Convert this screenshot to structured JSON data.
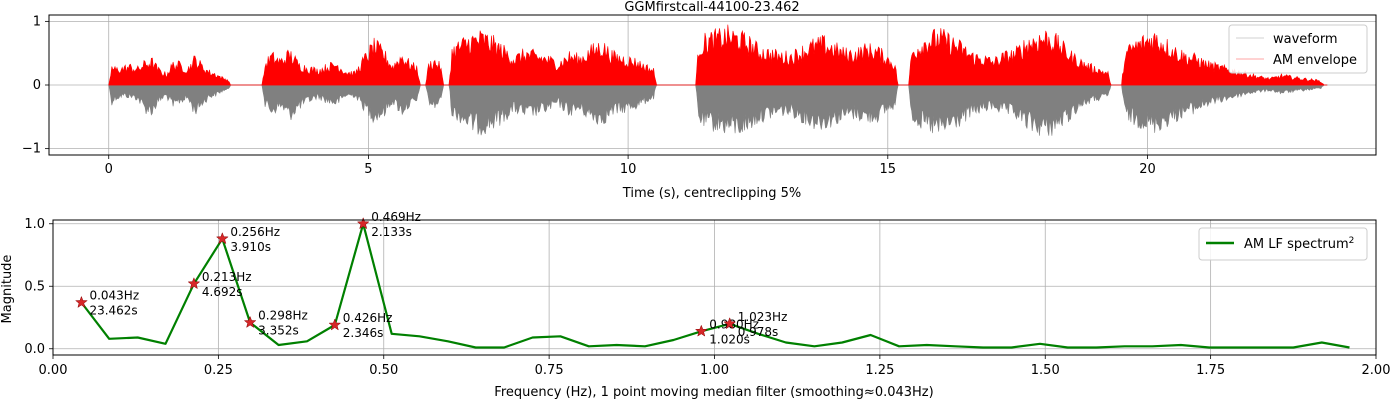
{
  "chart_data": [
    {
      "type": "line",
      "title": "GGMfirstcall-44100-23.462",
      "xlabel": "Time (s), centreclipping 5%",
      "ylabel": "",
      "xlim": [
        -1.15,
        24.4
      ],
      "ylim": [
        -1.1,
        1.1
      ],
      "xticks": [
        0,
        5,
        10,
        15,
        20
      ],
      "yticks": [
        -1,
        0,
        1
      ],
      "xtick_labels": [
        "0",
        "5",
        "10",
        "15",
        "20"
      ],
      "ytick_labels": [
        "−1",
        "0",
        "1"
      ],
      "grid": true,
      "legend": "top-right",
      "duration": 23.462,
      "series": [
        {
          "name": "waveform",
          "color": "#808080",
          "segments": [
            {
              "start": 0.0,
              "end": 2.35,
              "amplitude": [
                0.37,
                0.25,
                0.2,
                0.22,
                0.25,
                0.45,
                0.5,
                0.3,
                0.2,
                0.4,
                0.3,
                0.25,
                0.5,
                0.35,
                0.22,
                0.18,
                0.1,
                0.1
              ]
            },
            {
              "start": 2.95,
              "end": 6.0,
              "amplitude": [
                0.3,
                0.5,
                0.4,
                0.58,
                0.4,
                0.3,
                0.22,
                0.3,
                0.35,
                0.2,
                0.2,
                0.42,
                0.6,
                0.55,
                0.3,
                0.5,
                0.35,
                0.3
              ]
            },
            {
              "start": 6.1,
              "end": 6.45,
              "amplitude": [
                0.3,
                0.4,
                0.25
              ]
            },
            {
              "start": 6.55,
              "end": 10.55,
              "amplitude": [
                0.5,
                0.6,
                0.75,
                0.8,
                0.72,
                0.6,
                0.45,
                0.55,
                0.5,
                0.45,
                0.35,
                0.5,
                0.45,
                0.6,
                0.65,
                0.5,
                0.45,
                0.4,
                0.3,
                0.2
              ]
            },
            {
              "start": 11.3,
              "end": 15.2,
              "amplitude": [
                0.6,
                0.72,
                0.75,
                0.8,
                0.82,
                0.75,
                0.6,
                0.55,
                0.5,
                0.5,
                0.6,
                0.7,
                0.72,
                0.65,
                0.58,
                0.55,
                0.62,
                0.6,
                0.45,
                0.35
              ]
            },
            {
              "start": 15.4,
              "end": 19.3,
              "amplitude": [
                0.5,
                0.7,
                0.8,
                0.85,
                0.75,
                0.65,
                0.5,
                0.45,
                0.4,
                0.5,
                0.55,
                0.7,
                0.8,
                0.85,
                0.75,
                0.6,
                0.4,
                0.3,
                0.25,
                0.2
              ]
            },
            {
              "start": 19.5,
              "end": 23.4,
              "amplitude": [
                0.45,
                0.65,
                0.7,
                0.78,
                0.7,
                0.6,
                0.5,
                0.45,
                0.35,
                0.3,
                0.25,
                0.2,
                0.15,
                0.12,
                0.1,
                0.15,
                0.12,
                0.1,
                0.08,
                0.05
              ]
            }
          ]
        },
        {
          "name": "AM envelope",
          "color": "#ff0000",
          "segments": [
            {
              "start": 0.0,
              "end": 2.35,
              "amplitude": [
                0.35,
                0.3,
                0.32,
                0.35,
                0.3,
                0.4,
                0.45,
                0.28,
                0.2,
                0.4,
                0.38,
                0.3,
                0.5,
                0.36,
                0.25,
                0.2,
                0.12,
                0.1
              ]
            },
            {
              "start": 2.95,
              "end": 6.0,
              "amplitude": [
                0.3,
                0.55,
                0.45,
                0.6,
                0.38,
                0.32,
                0.28,
                0.35,
                0.4,
                0.25,
                0.22,
                0.5,
                0.75,
                0.62,
                0.35,
                0.55,
                0.38,
                0.3
              ]
            },
            {
              "start": 6.1,
              "end": 6.45,
              "amplitude": [
                0.35,
                0.45,
                0.3
              ]
            },
            {
              "start": 6.55,
              "end": 10.55,
              "amplitude": [
                0.6,
                0.75,
                0.85,
                0.9,
                0.8,
                0.65,
                0.5,
                0.6,
                0.55,
                0.5,
                0.4,
                0.55,
                0.5,
                0.65,
                0.75,
                0.55,
                0.5,
                0.45,
                0.35,
                0.25
              ]
            },
            {
              "start": 11.3,
              "end": 15.2,
              "amplitude": [
                0.7,
                0.85,
                0.9,
                0.95,
                0.9,
                0.8,
                0.65,
                0.6,
                0.55,
                0.55,
                0.65,
                0.75,
                0.8,
                0.7,
                0.6,
                0.6,
                0.68,
                0.65,
                0.5,
                0.35
              ]
            },
            {
              "start": 15.4,
              "end": 19.3,
              "amplitude": [
                0.55,
                0.75,
                0.88,
                0.92,
                0.82,
                0.7,
                0.55,
                0.5,
                0.45,
                0.55,
                0.6,
                0.78,
                0.88,
                0.92,
                0.8,
                0.6,
                0.45,
                0.35,
                0.28,
                0.2
              ]
            },
            {
              "start": 19.5,
              "end": 23.4,
              "amplitude": [
                0.5,
                0.72,
                0.82,
                0.92,
                0.8,
                0.65,
                0.55,
                0.5,
                0.4,
                0.35,
                0.3,
                0.25,
                0.2,
                0.15,
                0.12,
                0.18,
                0.15,
                0.12,
                0.1,
                0.06
              ]
            }
          ]
        }
      ]
    },
    {
      "type": "line",
      "title": "",
      "xlabel": "Frequency (Hz), 1 point moving median filter (smoothing≈0.043Hz)",
      "ylabel": "Magnitude",
      "xlim": [
        0.0,
        2.0
      ],
      "ylim": [
        -0.05,
        1.03
      ],
      "xticks": [
        0.0,
        0.25,
        0.5,
        0.75,
        1.0,
        1.25,
        1.5,
        1.75,
        2.0
      ],
      "yticks": [
        0.0,
        0.5,
        1.0
      ],
      "xtick_labels": [
        "0.00",
        "0.25",
        "0.50",
        "0.75",
        "1.00",
        "1.25",
        "1.50",
        "1.75",
        "2.00"
      ],
      "ytick_labels": [
        "0.0",
        "0.5",
        "1.0"
      ],
      "grid": true,
      "legend": "top-right",
      "series": [
        {
          "name": "AM LF spectrum",
          "name_superscript": "2",
          "color": "#008000",
          "x": [
            0.043,
            0.085,
            0.128,
            0.17,
            0.213,
            0.256,
            0.298,
            0.341,
            0.384,
            0.426,
            0.469,
            0.512,
            0.554,
            0.597,
            0.639,
            0.682,
            0.725,
            0.767,
            0.81,
            0.852,
            0.895,
            0.938,
            0.98,
            1.023,
            1.066,
            1.108,
            1.151,
            1.193,
            1.236,
            1.279,
            1.321,
            1.364,
            1.406,
            1.449,
            1.492,
            1.534,
            1.577,
            1.62,
            1.662,
            1.705,
            1.748,
            1.79,
            1.833,
            1.875,
            1.918,
            1.96
          ],
          "y": [
            0.37,
            0.08,
            0.09,
            0.04,
            0.52,
            0.88,
            0.21,
            0.03,
            0.06,
            0.19,
            1.0,
            0.12,
            0.1,
            0.06,
            0.01,
            0.01,
            0.09,
            0.1,
            0.02,
            0.03,
            0.02,
            0.07,
            0.14,
            0.2,
            0.12,
            0.05,
            0.02,
            0.05,
            0.11,
            0.02,
            0.03,
            0.02,
            0.01,
            0.01,
            0.04,
            0.01,
            0.01,
            0.02,
            0.02,
            0.03,
            0.01,
            0.01,
            0.01,
            0.01,
            0.05,
            0.01
          ]
        }
      ],
      "peaks": [
        {
          "x": 0.043,
          "y": 0.37,
          "freq_label": "0.043Hz",
          "period_label": "23.462s"
        },
        {
          "x": 0.213,
          "y": 0.52,
          "freq_label": "0.213Hz",
          "period_label": "4.692s"
        },
        {
          "x": 0.256,
          "y": 0.88,
          "freq_label": "0.256Hz",
          "period_label": "3.910s"
        },
        {
          "x": 0.298,
          "y": 0.21,
          "freq_label": "0.298Hz",
          "period_label": "3.352s"
        },
        {
          "x": 0.426,
          "y": 0.19,
          "freq_label": "0.426Hz",
          "period_label": "2.346s"
        },
        {
          "x": 0.469,
          "y": 1.0,
          "freq_label": "0.469Hz",
          "period_label": "2.133s"
        },
        {
          "x": 0.98,
          "y": 0.14,
          "freq_label": "0.980Hz",
          "period_label": "1.020s"
        },
        {
          "x": 1.023,
          "y": 0.2,
          "freq_label": "1.023Hz",
          "period_label": "0.978s"
        }
      ]
    }
  ]
}
